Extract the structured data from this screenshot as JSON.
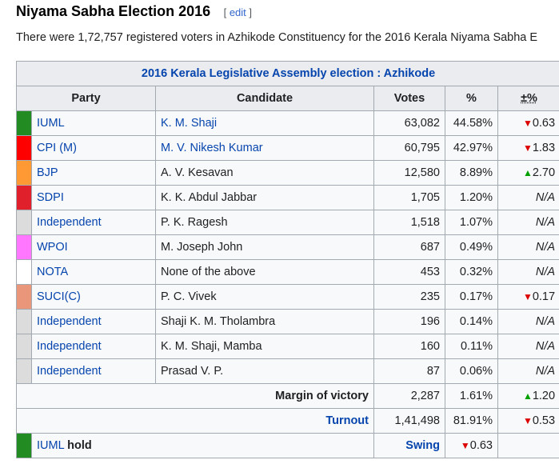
{
  "heading": {
    "title": "Niyama Sabha Election 2016",
    "edit_link": "edit"
  },
  "intro": "There were 1,72,757 registered voters in Azhikode Constituency for the 2016 Kerala Niyama Sabha E",
  "table": {
    "caption": "2016 Kerala Legislative Assembly election : Azhikode",
    "headers": {
      "party": "Party",
      "candidate": "Candidate",
      "votes": "Votes",
      "pct": "%",
      "change": "±%"
    },
    "rows": [
      {
        "color": "#228b22",
        "party": "IUML",
        "candidate": "K. M. Shaji",
        "candidate_link": true,
        "votes": "63,082",
        "pct": "44.58%",
        "change": "0.63",
        "dir": "down"
      },
      {
        "color": "#ff0000",
        "party": "CPI (M)",
        "candidate": "M. V. Nikesh Kumar",
        "candidate_link": true,
        "votes": "60,795",
        "pct": "42.97%",
        "change": "1.83",
        "dir": "down"
      },
      {
        "color": "#ff9933",
        "party": "BJP",
        "candidate": "A. V. Kesavan",
        "candidate_link": false,
        "votes": "12,580",
        "pct": "8.89%",
        "change": "2.70",
        "dir": "up"
      },
      {
        "color": "#e0202a",
        "party": "SDPI",
        "candidate": "K. K. Abdul Jabbar",
        "candidate_link": false,
        "votes": "1,705",
        "pct": "1.20%",
        "change": "N/A",
        "dir": "none"
      },
      {
        "color": "#dcdcdc",
        "party": "Independent",
        "candidate": "P. K. Ragesh",
        "candidate_link": false,
        "votes": "1,518",
        "pct": "1.07%",
        "change": "N/A",
        "dir": "none"
      },
      {
        "color": "#ff77ff",
        "party": "WPOI",
        "candidate": "M. Joseph John",
        "candidate_link": false,
        "votes": "687",
        "pct": "0.49%",
        "change": "N/A",
        "dir": "none"
      },
      {
        "color": "#ffffff",
        "party": "NOTA",
        "candidate": "None of the above",
        "candidate_link": false,
        "votes": "453",
        "pct": "0.32%",
        "change": "N/A",
        "dir": "none"
      },
      {
        "color": "#e9967a",
        "party": "SUCI(C)",
        "candidate": "P. C. Vivek",
        "candidate_link": false,
        "votes": "235",
        "pct": "0.17%",
        "change": "0.17",
        "dir": "down"
      },
      {
        "color": "#dcdcdc",
        "party": "Independent",
        "candidate": "Shaji K. M. Tholambra",
        "candidate_link": false,
        "votes": "196",
        "pct": "0.14%",
        "change": "N/A",
        "dir": "none"
      },
      {
        "color": "#dcdcdc",
        "party": "Independent",
        "candidate": "K. M. Shaji, Mamba",
        "candidate_link": false,
        "votes": "160",
        "pct": "0.11%",
        "change": "N/A",
        "dir": "none"
      },
      {
        "color": "#dcdcdc",
        "party": "Independent",
        "candidate": "Prasad V. P.",
        "candidate_link": false,
        "votes": "87",
        "pct": "0.06%",
        "change": "N/A",
        "dir": "none"
      }
    ],
    "margin": {
      "label": "Margin of victory",
      "votes": "2,287",
      "pct": "1.61%",
      "change": "1.20",
      "dir": "up"
    },
    "turnout": {
      "label": "Turnout",
      "votes": "1,41,498",
      "pct": "81.91%",
      "change": "0.53",
      "dir": "down"
    },
    "hold": {
      "color": "#228b22",
      "party": "IUML",
      "word": "hold",
      "swing_label": "Swing",
      "swing": "0.63",
      "dir": "down"
    }
  },
  "icons": {
    "up": "triangle-up-icon",
    "down": "triangle-down-icon"
  }
}
